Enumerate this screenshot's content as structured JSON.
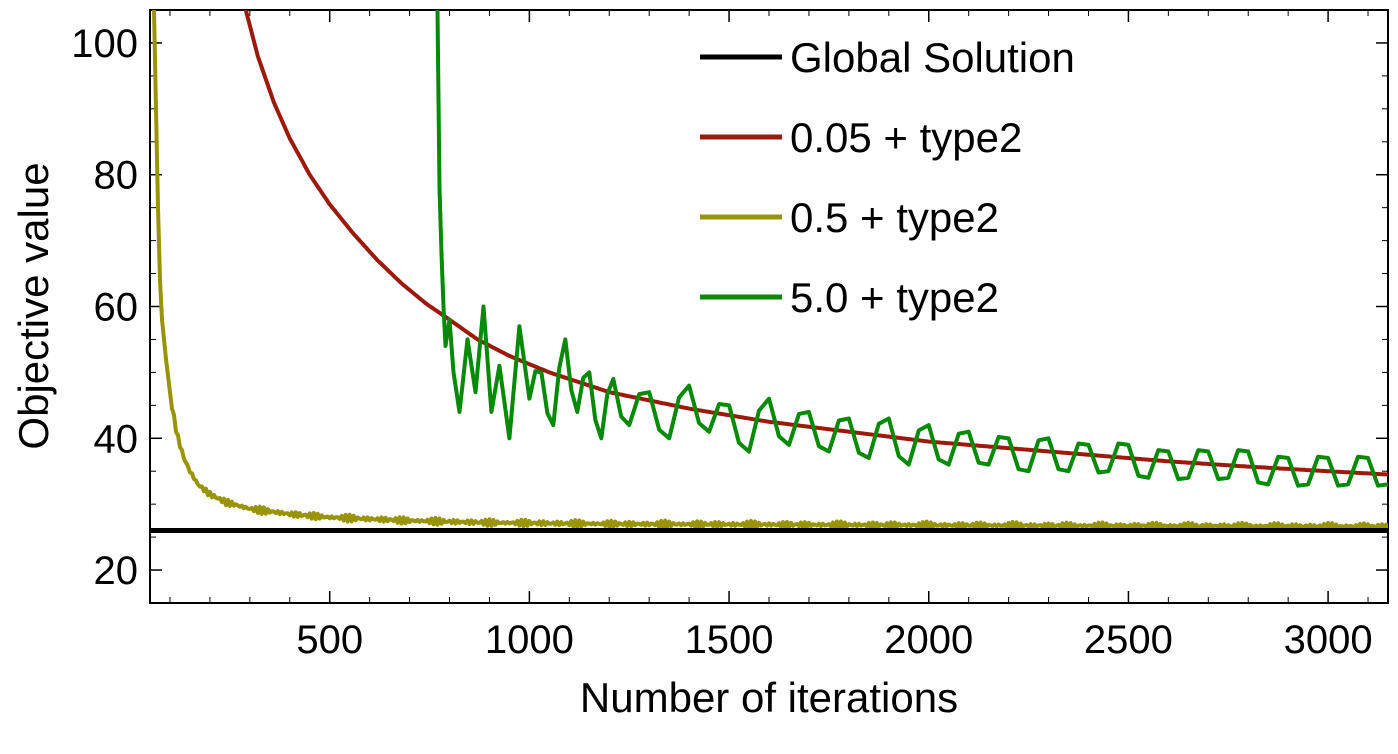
{
  "chart_data": {
    "type": "line",
    "title": "",
    "xlabel": "Number of iterations",
    "ylabel": "Objective value",
    "xlim": [
      50,
      3150
    ],
    "ylim": [
      15,
      105
    ],
    "xticks": [
      {
        "value": 500,
        "label": "500"
      },
      {
        "value": 1000,
        "label": "1000"
      },
      {
        "value": 1500,
        "label": "1500"
      },
      {
        "value": 2000,
        "label": "2000"
      },
      {
        "value": 2500,
        "label": "2500"
      },
      {
        "value": 3000,
        "label": "3000"
      }
    ],
    "yticks": [
      {
        "value": 20,
        "label": "20"
      },
      {
        "value": 40,
        "label": "40"
      },
      {
        "value": 60,
        "label": "60"
      },
      {
        "value": 80,
        "label": "80"
      },
      {
        "value": 100,
        "label": "100"
      }
    ],
    "grid": false,
    "legend_position": "top-right",
    "series": [
      {
        "name": "Global Solution",
        "color": "#000000",
        "kind": "constant",
        "value": 26.0,
        "x_start": 50,
        "x_end": 3150
      },
      {
        "name": "0.05 + type2",
        "color": "#9b1a0c",
        "kind": "decay",
        "x_start": 290,
        "x_end": 3150,
        "points": [
          [
            290,
            105
          ],
          [
            320,
            98
          ],
          [
            360,
            91
          ],
          [
            400,
            85.5
          ],
          [
            450,
            80
          ],
          [
            500,
            75.5
          ],
          [
            560,
            71
          ],
          [
            620,
            67
          ],
          [
            680,
            63.5
          ],
          [
            740,
            60.5
          ],
          [
            800,
            58
          ],
          [
            870,
            55
          ],
          [
            950,
            52.5
          ],
          [
            1050,
            50
          ],
          [
            1200,
            47
          ],
          [
            1400,
            44.5
          ],
          [
            1600,
            42.5
          ],
          [
            1800,
            41
          ],
          [
            2000,
            39.5
          ],
          [
            2200,
            38.5
          ],
          [
            2400,
            37.5
          ],
          [
            2600,
            36.5
          ],
          [
            2800,
            35.7
          ],
          [
            3000,
            35
          ],
          [
            3150,
            34.5
          ]
        ]
      },
      {
        "name": "0.5 + type2",
        "color": "#999406",
        "kind": "decay",
        "x_start": 60,
        "x_end": 3150,
        "points": [
          [
            60,
            105
          ],
          [
            65,
            90
          ],
          [
            70,
            75
          ],
          [
            75,
            64
          ],
          [
            80,
            58
          ],
          [
            90,
            52
          ],
          [
            100,
            47
          ],
          [
            110,
            43
          ],
          [
            120,
            40
          ],
          [
            135,
            37
          ],
          [
            150,
            35
          ],
          [
            170,
            33
          ],
          [
            200,
            31.5
          ],
          [
            240,
            30.3
          ],
          [
            300,
            29.3
          ],
          [
            400,
            28.5
          ],
          [
            500,
            28
          ],
          [
            700,
            27.5
          ],
          [
            900,
            27.2
          ],
          [
            1200,
            27
          ],
          [
            1600,
            26.9
          ],
          [
            2000,
            26.8
          ],
          [
            2500,
            26.7
          ],
          [
            3150,
            26.6
          ]
        ]
      },
      {
        "name": "5.0 + type2",
        "color": "#078a07",
        "kind": "oscillating",
        "x_start": 770,
        "x_end": 3150,
        "points": [
          [
            770,
            105
          ],
          [
            775,
            78
          ],
          [
            780,
            68
          ],
          [
            785,
            60
          ],
          [
            790,
            54
          ],
          [
            800,
            58
          ],
          [
            810,
            50
          ],
          [
            825,
            44
          ],
          [
            845,
            55
          ],
          [
            865,
            47
          ],
          [
            885,
            60
          ],
          [
            905,
            44
          ],
          [
            925,
            51
          ],
          [
            950,
            40
          ],
          [
            975,
            57
          ],
          [
            1000,
            46
          ],
          [
            1030,
            50
          ],
          [
            1060,
            42
          ],
          [
            1090,
            55
          ],
          [
            1120,
            44
          ],
          [
            1150,
            50
          ],
          [
            1180,
            40
          ],
          [
            1210,
            49
          ],
          [
            1250,
            42
          ],
          [
            1300,
            47
          ],
          [
            1350,
            40
          ],
          [
            1400,
            48
          ],
          [
            1450,
            41
          ],
          [
            1500,
            45
          ],
          [
            1550,
            38
          ],
          [
            1600,
            46
          ],
          [
            1650,
            39
          ],
          [
            1700,
            44
          ],
          [
            1750,
            38
          ],
          [
            1800,
            43
          ],
          [
            1850,
            37
          ],
          [
            1900,
            43
          ],
          [
            1950,
            36
          ],
          [
            2000,
            42
          ],
          [
            2050,
            36
          ],
          [
            2100,
            41
          ],
          [
            2150,
            36
          ],
          [
            2200,
            40
          ],
          [
            2250,
            35
          ],
          [
            2300,
            40
          ],
          [
            2350,
            35
          ],
          [
            2400,
            39
          ],
          [
            2450,
            35
          ],
          [
            2500,
            39
          ],
          [
            2550,
            34
          ],
          [
            2600,
            38
          ],
          [
            2650,
            34
          ],
          [
            2700,
            38
          ],
          [
            2750,
            34
          ],
          [
            2800,
            38
          ],
          [
            2850,
            33
          ],
          [
            2900,
            37
          ],
          [
            2950,
            33
          ],
          [
            3000,
            37
          ],
          [
            3050,
            33
          ],
          [
            3100,
            37
          ],
          [
            3150,
            33
          ]
        ]
      }
    ]
  }
}
